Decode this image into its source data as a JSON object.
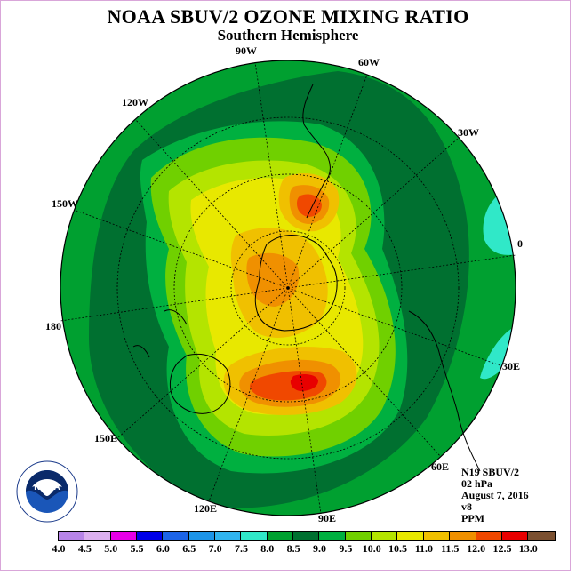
{
  "title": "NOAA SBUV/2 OZONE MIXING RATIO",
  "subtitle": "Southern Hemisphere",
  "longitude_labels": [
    "90W",
    "60W",
    "30W",
    "0",
    "30E",
    "60E",
    "90E",
    "120E",
    "150E",
    "180",
    "150W",
    "120W"
  ],
  "info": {
    "satellite": "N19 SBUV/2",
    "level": "02 hPa",
    "date": "August 7, 2016",
    "version": "v8",
    "units": "PPM"
  },
  "colorbar": {
    "ticks": [
      "4.0",
      "4.5",
      "5.0",
      "5.5",
      "6.0",
      "6.5",
      "7.0",
      "7.5",
      "8.0",
      "8.5",
      "9.0",
      "9.5",
      "10.0",
      "10.5",
      "11.0",
      "11.5",
      "12.0",
      "12.5",
      "13.0"
    ],
    "colors": [
      "#b784e8",
      "#dcb0f0",
      "#e800e8",
      "#0000e8",
      "#1c64e8",
      "#1c94e8",
      "#30b4f0",
      "#30e8c8",
      "#00a030",
      "#007030",
      "#00b040",
      "#70d000",
      "#b4e400",
      "#e8e800",
      "#f0c000",
      "#f09000",
      "#f04800",
      "#e80000",
      "#7b5030"
    ]
  },
  "logo": {
    "text": "NOAA",
    "ring_text": "NATIONAL OCEANIC AND ATMOSPHERIC ADMINISTRATION · U.S. DEPARTMENT OF COMMERCE"
  }
}
